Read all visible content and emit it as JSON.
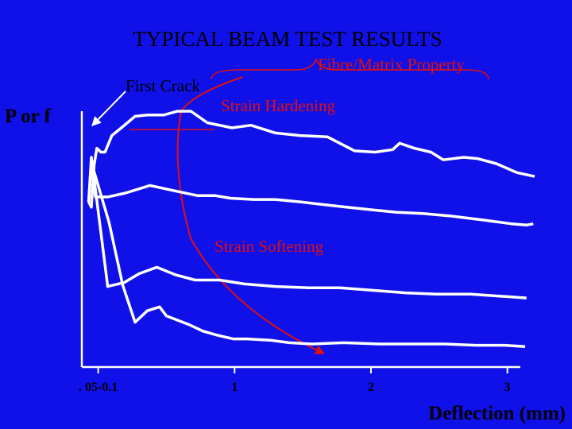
{
  "slide": {
    "title": "TYPICAL BEAM TEST RESULTS"
  },
  "colors": {
    "background": "#1010e8",
    "curves": "#ffffff",
    "axes": "#ffffff",
    "annotation_red": "#e01010",
    "title_text": "#000000",
    "annotation_text": "#e01010"
  },
  "annotations": {
    "fibre_matrix": "Fibre/Matrix Property",
    "first_crack": "First Crack",
    "strain_hardening": "Strain Hardening",
    "strain_softening": "Strain Softening"
  },
  "chart_data": {
    "type": "line",
    "ylabel": "P or f",
    "xlabel": "Deflection (mm)",
    "xlim": [
      -0.12,
      3.2
    ],
    "ylim": [
      0,
      1.0
    ],
    "x_ticks": [
      {
        "value": 0.0,
        "label": ". 05-0.1"
      },
      {
        "value": 1,
        "label": "1"
      },
      {
        "value": 2,
        "label": "2"
      },
      {
        "value": 3,
        "label": "3"
      }
    ],
    "grid": false,
    "legend": "none",
    "series": [
      {
        "points": [
          [
            -0.07,
            0.645
          ],
          [
            -0.05,
            0.625
          ],
          [
            -0.03,
            0.79
          ],
          [
            -0.01,
            0.855
          ],
          [
            0.02,
            0.84
          ],
          [
            0.05,
            0.84
          ],
          [
            0.1,
            0.905
          ],
          [
            0.17,
            0.935
          ],
          [
            0.27,
            0.98
          ],
          [
            0.36,
            0.985
          ],
          [
            0.48,
            0.985
          ],
          [
            0.58,
            1.0
          ],
          [
            0.68,
            1.0
          ],
          [
            0.8,
            0.955
          ],
          [
            0.98,
            0.935
          ],
          [
            1.12,
            0.945
          ],
          [
            1.3,
            0.915
          ],
          [
            1.48,
            0.905
          ],
          [
            1.68,
            0.9
          ],
          [
            1.88,
            0.845
          ],
          [
            2.03,
            0.84
          ],
          [
            2.16,
            0.85
          ],
          [
            2.21,
            0.875
          ],
          [
            2.32,
            0.855
          ],
          [
            2.44,
            0.84
          ],
          [
            2.53,
            0.81
          ],
          [
            2.68,
            0.82
          ],
          [
            2.78,
            0.815
          ],
          [
            2.92,
            0.795
          ],
          [
            3.07,
            0.76
          ],
          [
            3.2,
            0.745
          ]
        ]
      },
      {
        "points": [
          [
            -0.07,
            0.645
          ],
          [
            -0.05,
            0.805
          ],
          [
            -0.02,
            0.665
          ],
          [
            0.07,
            0.665
          ],
          [
            0.2,
            0.68
          ],
          [
            0.38,
            0.71
          ],
          [
            0.55,
            0.69
          ],
          [
            0.73,
            0.67
          ],
          [
            0.86,
            0.67
          ],
          [
            0.97,
            0.66
          ],
          [
            1.14,
            0.655
          ],
          [
            1.3,
            0.655
          ],
          [
            1.49,
            0.645
          ],
          [
            1.65,
            0.635
          ],
          [
            1.82,
            0.625
          ],
          [
            2.0,
            0.615
          ],
          [
            2.19,
            0.605
          ],
          [
            2.38,
            0.6
          ],
          [
            2.59,
            0.59
          ],
          [
            2.82,
            0.575
          ],
          [
            3.03,
            0.56
          ],
          [
            3.14,
            0.555
          ],
          [
            3.19,
            0.56
          ]
        ]
      },
      {
        "points": [
          [
            -0.07,
            0.645
          ],
          [
            -0.05,
            0.82
          ],
          [
            0.07,
            0.315
          ],
          [
            0.19,
            0.33
          ],
          [
            0.3,
            0.365
          ],
          [
            0.43,
            0.39
          ],
          [
            0.57,
            0.36
          ],
          [
            0.71,
            0.34
          ],
          [
            0.89,
            0.34
          ],
          [
            1.07,
            0.325
          ],
          [
            1.3,
            0.315
          ],
          [
            1.54,
            0.31
          ],
          [
            1.77,
            0.31
          ],
          [
            2.01,
            0.3
          ],
          [
            2.25,
            0.29
          ],
          [
            2.48,
            0.285
          ],
          [
            2.73,
            0.285
          ],
          [
            3.0,
            0.275
          ],
          [
            3.14,
            0.27
          ]
        ]
      },
      {
        "points": [
          [
            -0.07,
            0.645
          ],
          [
            -0.05,
            0.8
          ],
          [
            0.08,
            0.565
          ],
          [
            0.18,
            0.32
          ],
          [
            0.27,
            0.175
          ],
          [
            0.36,
            0.22
          ],
          [
            0.45,
            0.235
          ],
          [
            0.5,
            0.2
          ],
          [
            0.67,
            0.165
          ],
          [
            0.77,
            0.14
          ],
          [
            0.87,
            0.125
          ],
          [
            0.99,
            0.11
          ],
          [
            1.09,
            0.11
          ],
          [
            1.26,
            0.105
          ],
          [
            1.4,
            0.095
          ],
          [
            1.57,
            0.09
          ],
          [
            1.8,
            0.095
          ],
          [
            2.06,
            0.09
          ],
          [
            2.28,
            0.09
          ],
          [
            2.54,
            0.09
          ],
          [
            2.77,
            0.085
          ],
          [
            2.98,
            0.085
          ],
          [
            3.13,
            0.08
          ]
        ]
      }
    ]
  }
}
